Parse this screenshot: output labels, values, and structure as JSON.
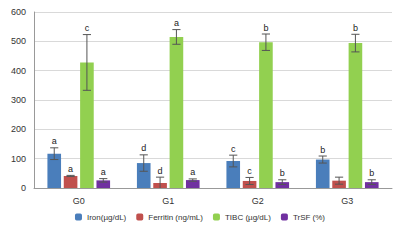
{
  "chart_data": {
    "type": "bar",
    "categories": [
      "G0",
      "G1",
      "G2",
      "G3"
    ],
    "series": [
      {
        "name": "Iron(µg/dL)",
        "color": "#4a7ebb",
        "values": [
          117,
          85,
          92,
          97
        ],
        "errors": [
          20,
          28,
          20,
          12
        ],
        "annotations": [
          "a",
          "d",
          "c",
          "b"
        ]
      },
      {
        "name": "Ferritin (ng/mL)",
        "color": "#c0504d",
        "values": [
          41,
          17,
          24,
          25
        ],
        "errors": [
          2,
          20,
          12,
          12
        ],
        "annotations": [
          "a",
          "d",
          "c",
          null
        ]
      },
      {
        "name": "TIBC (µg/dL)",
        "color": "#92d050",
        "values": [
          428,
          515,
          497,
          494
        ],
        "errors": [
          95,
          25,
          28,
          30
        ],
        "annotations": [
          "c",
          "a",
          "b",
          "b"
        ]
      },
      {
        "name": "TrSF (%)",
        "color": "#7030a0",
        "values": [
          26,
          27,
          20,
          20
        ],
        "errors": [
          6,
          4,
          8,
          8
        ],
        "annotations": [
          "a",
          "a",
          "b",
          "b"
        ]
      }
    ],
    "ylim": [
      0,
      600
    ],
    "yticks": [
      0,
      100,
      200,
      300,
      400,
      500,
      600
    ],
    "grid": true,
    "legend": "bottom"
  }
}
